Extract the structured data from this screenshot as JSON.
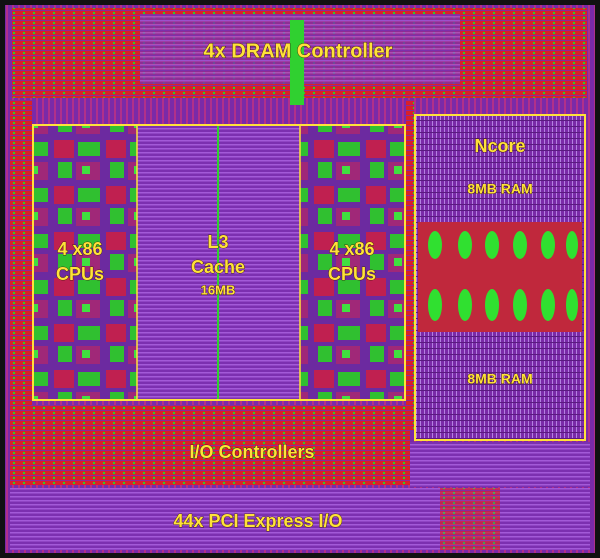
{
  "title": "4x DRAM Controller",
  "blocks": {
    "cpus_left": {
      "lines": [
        "4 x86",
        "CPUs"
      ]
    },
    "l3": {
      "lines": [
        "L3",
        "Cache",
        "16MB"
      ]
    },
    "cpus_right": {
      "lines": [
        "4 x86",
        "CPUs"
      ]
    },
    "ncore": {
      "title": "Ncore",
      "ram_top": "8MB RAM",
      "ram_bottom": "8MB RAM"
    },
    "io": "I/O Controllers",
    "pci": "44x PCI Express I/O"
  }
}
